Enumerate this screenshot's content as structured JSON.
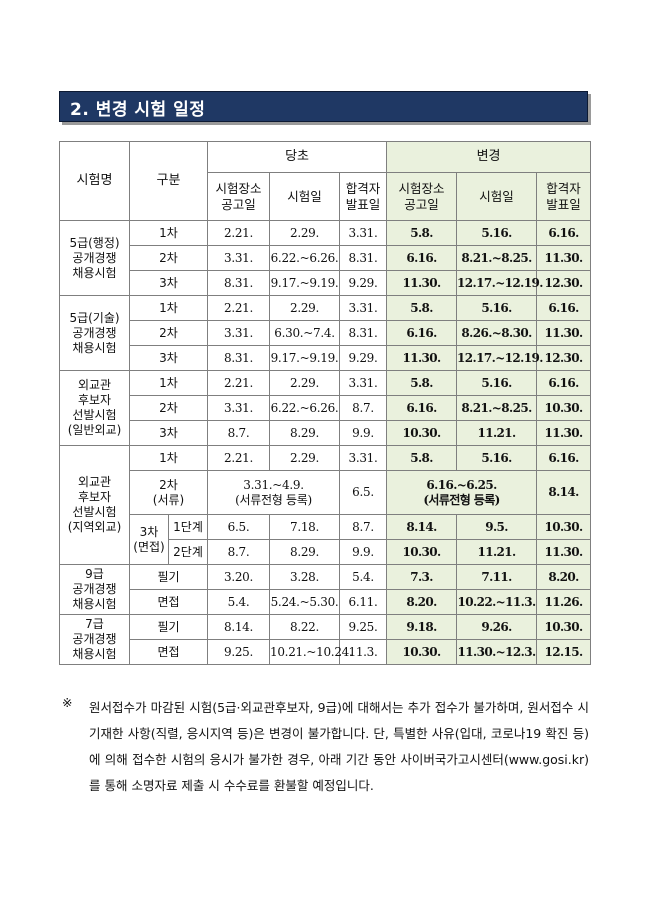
{
  "section_title": "2. 변경 시험 일정",
  "headers": {
    "exam_name": "시험명",
    "category": "구분",
    "original": "당초",
    "changed": "변경",
    "venue_notice": "시험장소\n공고일",
    "exam_date": "시험일",
    "result_date": "합격자\n발표일"
  },
  "groups": [
    {
      "name": "5급(행정)\n공개경쟁\n채용시험",
      "rows": [
        {
          "stage": "1차",
          "orig": [
            "2.21.",
            "2.29.",
            "3.31."
          ],
          "chg": [
            "5.8.",
            "5.16.",
            "6.16."
          ]
        },
        {
          "stage": "2차",
          "orig": [
            "3.31.",
            "6.22.~6.26.",
            "8.31."
          ],
          "chg": [
            "6.16.",
            "8.21.~8.25.",
            "11.30."
          ]
        },
        {
          "stage": "3차",
          "orig": [
            "8.31.",
            "9.17.~9.19.",
            "9.29."
          ],
          "chg": [
            "11.30.",
            "12.17.~12.19.",
            "12.30."
          ]
        }
      ]
    },
    {
      "name": "5급(기술)\n공개경쟁\n채용시험",
      "rows": [
        {
          "stage": "1차",
          "orig": [
            "2.21.",
            "2.29.",
            "3.31."
          ],
          "chg": [
            "5.8.",
            "5.16.",
            "6.16."
          ]
        },
        {
          "stage": "2차",
          "orig": [
            "3.31.",
            "6.30.~7.4.",
            "8.31."
          ],
          "chg": [
            "6.16.",
            "8.26.~8.30.",
            "11.30."
          ]
        },
        {
          "stage": "3차",
          "orig": [
            "8.31.",
            "9.17.~9.19.",
            "9.29."
          ],
          "chg": [
            "11.30.",
            "12.17.~12.19.",
            "12.30."
          ]
        }
      ]
    },
    {
      "name": "외교관\n후보자\n선발시험\n(일반외교)",
      "rows": [
        {
          "stage": "1차",
          "orig": [
            "2.21.",
            "2.29.",
            "3.31."
          ],
          "chg": [
            "5.8.",
            "5.16.",
            "6.16."
          ]
        },
        {
          "stage": "2차",
          "orig": [
            "3.31.",
            "6.22.~6.26.",
            "8.7."
          ],
          "chg": [
            "6.16.",
            "8.21.~8.25.",
            "10.30."
          ]
        },
        {
          "stage": "3차",
          "orig": [
            "8.7.",
            "8.29.",
            "9.9."
          ],
          "chg": [
            "10.30.",
            "11.21.",
            "11.30."
          ]
        }
      ]
    },
    {
      "name": "외교관\n후보자\n선발시험\n(지역외교)",
      "row1": {
        "stage": "1차",
        "orig": [
          "2.21.",
          "2.29.",
          "3.31."
        ],
        "chg": [
          "5.8.",
          "5.16.",
          "6.16."
        ]
      },
      "row2": {
        "stage": "2차\n(서류)",
        "orig_merged": "3.31.~4.9.\n(서류전형 등록)",
        "orig_result": "6.5.",
        "chg_merged": "6.16.~6.25.\n(서류전형 등록)",
        "chg_result": "8.14."
      },
      "row3_label": "3차\n(면접)",
      "row3": [
        {
          "sub": "1단계",
          "orig": [
            "6.5.",
            "7.18.",
            "8.7."
          ],
          "chg": [
            "8.14.",
            "9.5.",
            "10.30."
          ]
        },
        {
          "sub": "2단계",
          "orig": [
            "8.7.",
            "8.29.",
            "9.9."
          ],
          "chg": [
            "10.30.",
            "11.21.",
            "11.30."
          ]
        }
      ]
    },
    {
      "name": "9급\n공개경쟁\n채용시험",
      "rows": [
        {
          "stage": "필기",
          "orig": [
            "3.20.",
            "3.28.",
            "5.4."
          ],
          "chg": [
            "7.3.",
            "7.11.",
            "8.20."
          ]
        },
        {
          "stage": "면접",
          "orig": [
            "5.4.",
            "5.24.~5.30.",
            "6.11."
          ],
          "chg": [
            "8.20.",
            "10.22.~11.3.",
            "11.26."
          ]
        }
      ]
    },
    {
      "name": "7급\n공개경쟁\n채용시험",
      "rows": [
        {
          "stage": "필기",
          "orig": [
            "8.14.",
            "8.22.",
            "9.25."
          ],
          "chg": [
            "9.18.",
            "9.26.",
            "10.30."
          ]
        },
        {
          "stage": "면접",
          "orig": [
            "9.25.",
            "10.21.~10.24.",
            "11.3."
          ],
          "chg": [
            "10.30.",
            "11.30.~12.3.",
            "12.15."
          ]
        }
      ]
    }
  ],
  "note": {
    "mark": "※",
    "text": "원서접수가 마감된 시험(5급·외교관후보자, 9급)에 대해서는 추가 접수가 불가하며, 원서접수 시 기재한 사항(직렬, 응시지역 등)은 변경이 불가합니다. 단, 특별한 사유(입대, 코로나19 확진 등)에 의해 접수한 시험의 응시가 불가한 경우, 아래 기간 동안 사이버국가고시센터(www.gosi.kr)를 통해 소명자료 제출 시 수수료를 환불할 예정입니다."
  }
}
